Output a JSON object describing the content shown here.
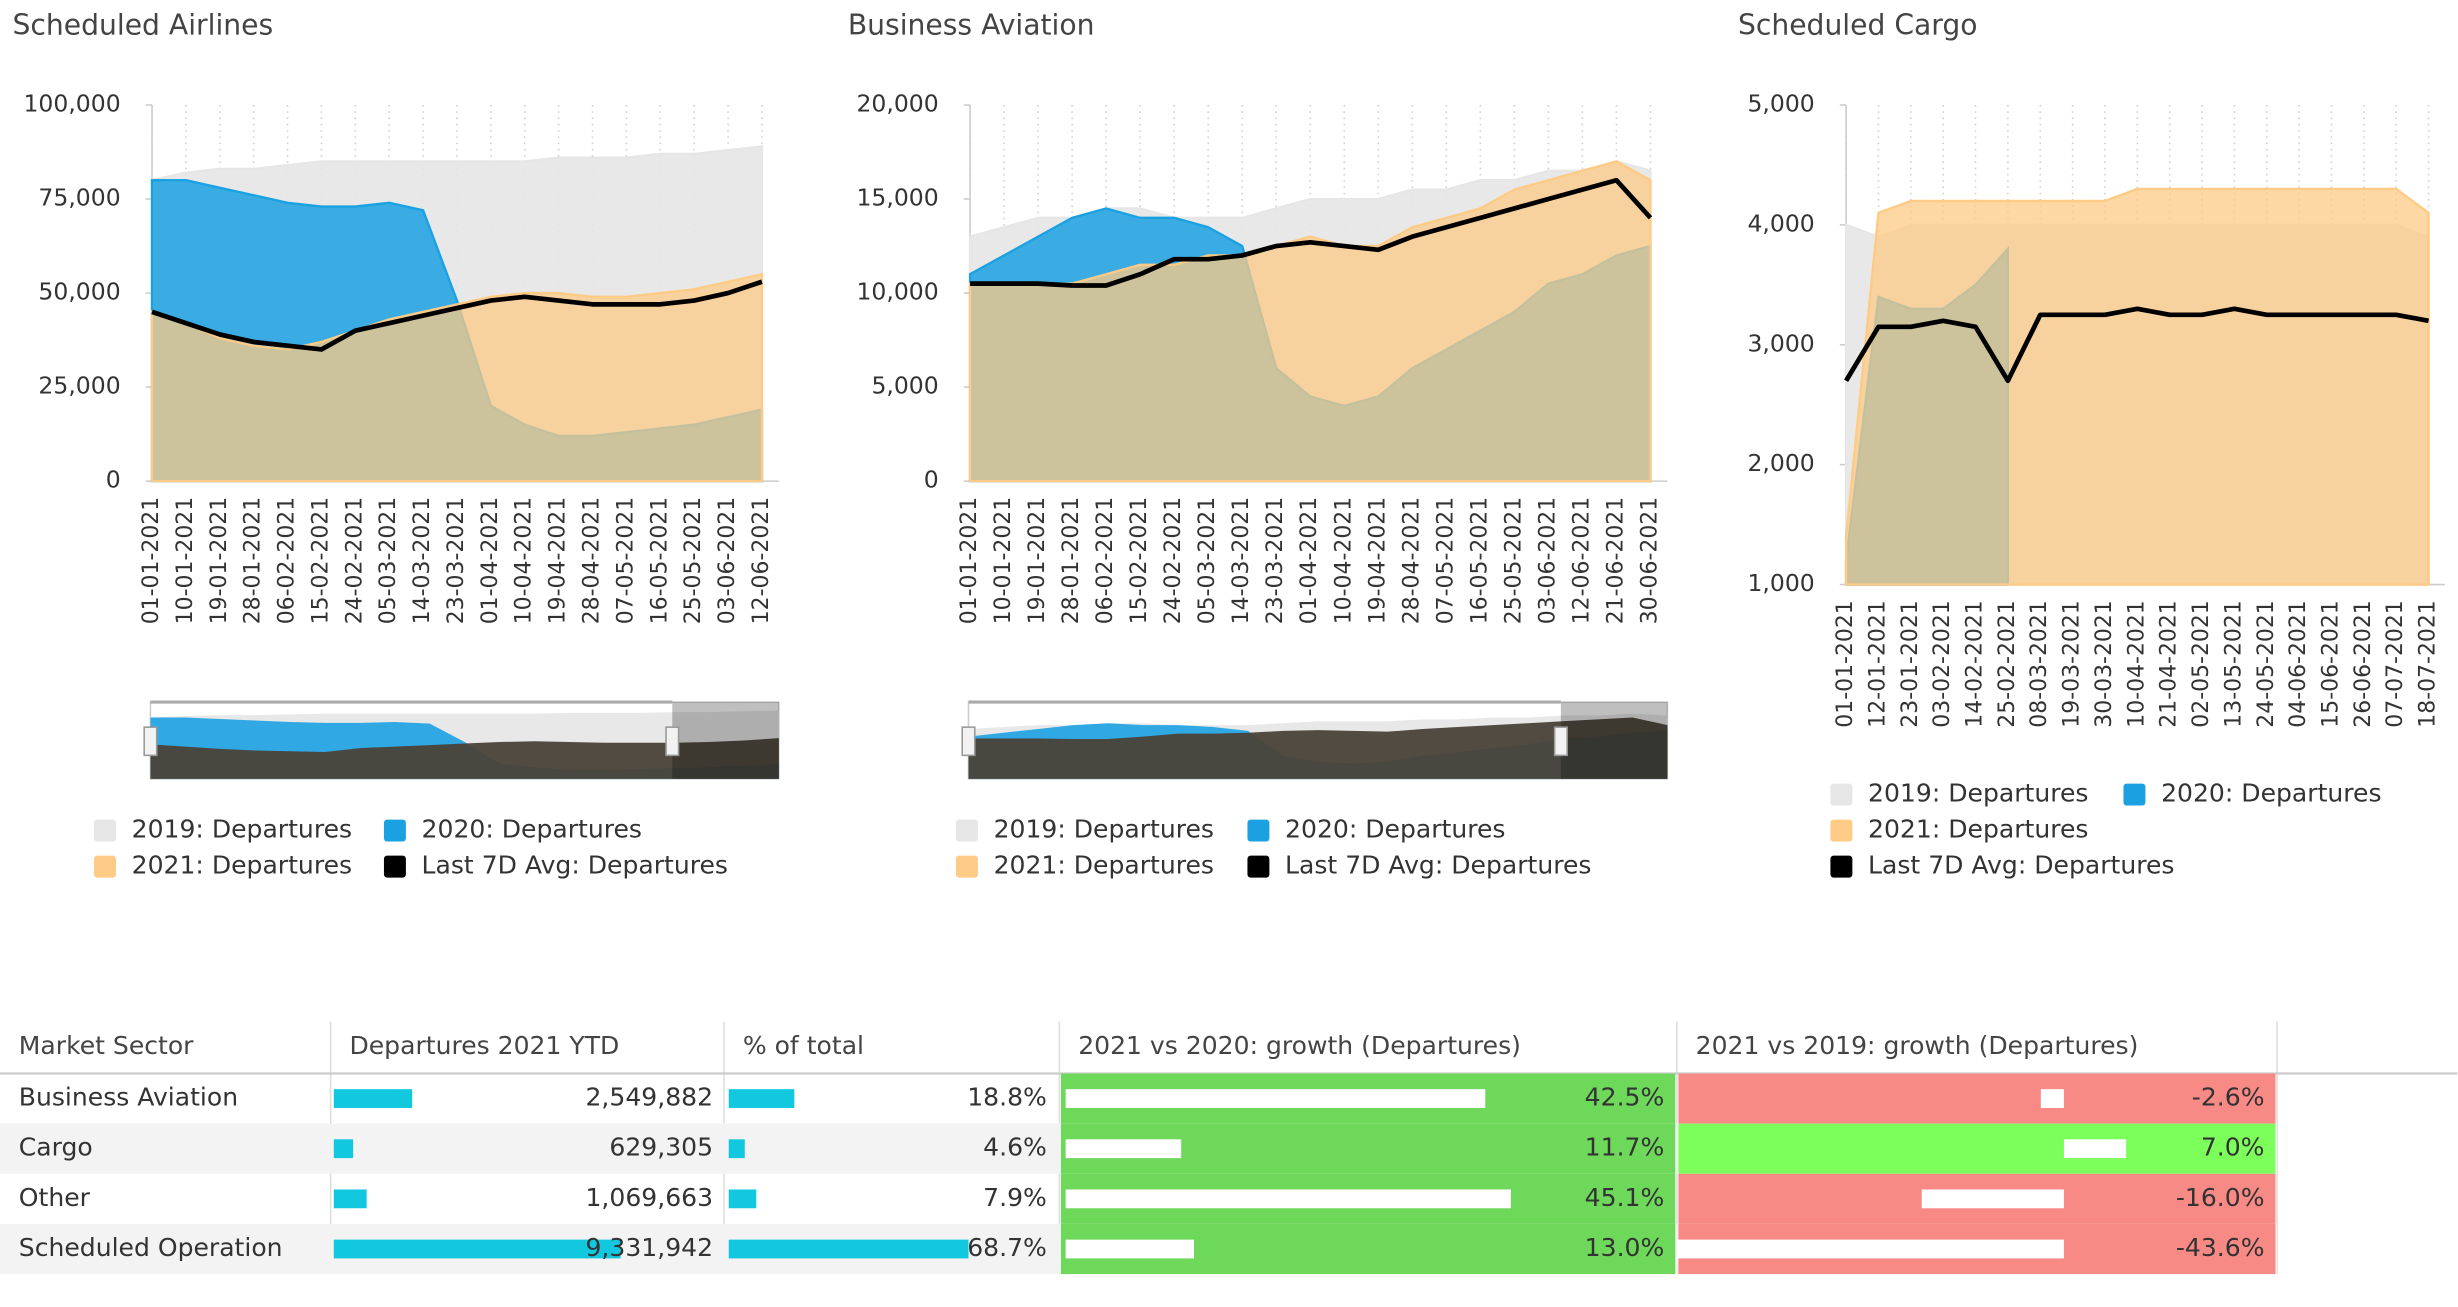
{
  "chart_data": [
    {
      "type": "area",
      "title": "Scheduled Airlines",
      "categories": [
        "01-01-2021",
        "10-01-2021",
        "19-01-2021",
        "28-01-2021",
        "06-02-2021",
        "15-02-2021",
        "24-02-2021",
        "05-03-2021",
        "14-03-2021",
        "23-03-2021",
        "01-04-2021",
        "10-04-2021",
        "19-04-2021",
        "28-04-2021",
        "07-05-2021",
        "16-05-2021",
        "25-05-2021",
        "03-06-2021",
        "12-06-2021"
      ],
      "series": [
        {
          "name": "2019: Departures",
          "color": "#e6e6e6",
          "values": [
            80000,
            82000,
            83000,
            83000,
            84000,
            85000,
            85000,
            85000,
            85000,
            85000,
            85000,
            85000,
            86000,
            86000,
            86000,
            87000,
            87000,
            88000,
            89000
          ]
        },
        {
          "name": "2020: Departures",
          "color": "#1ba1e2",
          "values": [
            80000,
            80000,
            78000,
            76000,
            74000,
            73000,
            73000,
            74000,
            72000,
            48000,
            20000,
            15000,
            12000,
            12000,
            13000,
            14000,
            15000,
            17000,
            19000
          ]
        },
        {
          "name": "2021: Departures",
          "color": "#fdcb85",
          "values": [
            45000,
            42000,
            38000,
            36000,
            35000,
            37000,
            40000,
            43000,
            45000,
            47000,
            49000,
            50000,
            50000,
            49000,
            49000,
            50000,
            51000,
            53000,
            55000
          ]
        },
        {
          "name": "Last 7D Avg: Departures",
          "color": "#000000",
          "values": [
            45000,
            42000,
            39000,
            37000,
            36000,
            35000,
            40000,
            42000,
            44000,
            46000,
            48000,
            49000,
            48000,
            47000,
            47000,
            47000,
            48000,
            50000,
            53000
          ]
        }
      ],
      "ylim": [
        0,
        100000
      ],
      "yticks": [
        0,
        {
          "value": 25000,
          "label": "25,000"
        },
        {
          "value": 50000,
          "label": "50,000"
        },
        {
          "value": 75000,
          "label": "75,000"
        },
        {
          "value": 100000,
          "label": "100,000"
        }
      ],
      "grid": true
    },
    {
      "type": "area",
      "title": "Business Aviation",
      "categories": [
        "01-01-2021",
        "10-01-2021",
        "19-01-2021",
        "28-01-2021",
        "06-02-2021",
        "15-02-2021",
        "24-02-2021",
        "05-03-2021",
        "14-03-2021",
        "23-03-2021",
        "01-04-2021",
        "10-04-2021",
        "19-04-2021",
        "28-04-2021",
        "07-05-2021",
        "16-05-2021",
        "25-05-2021",
        "03-06-2021",
        "12-06-2021",
        "21-06-2021",
        "30-06-2021"
      ],
      "series": [
        {
          "name": "2019: Departures",
          "color": "#e6e6e6",
          "values": [
            13000,
            13500,
            14000,
            14000,
            14500,
            14500,
            14000,
            14000,
            14000,
            14500,
            15000,
            15000,
            15000,
            15500,
            15500,
            16000,
            16000,
            16500,
            16500,
            17000,
            16500
          ]
        },
        {
          "name": "2020: Departures",
          "color": "#1ba1e2",
          "values": [
            11000,
            12000,
            13000,
            14000,
            14500,
            14000,
            14000,
            13500,
            12500,
            6000,
            4500,
            4000,
            4500,
            6000,
            7000,
            8000,
            9000,
            10500,
            11000,
            12000,
            12500
          ]
        },
        {
          "name": "2021: Departures",
          "color": "#fdcb85",
          "values": [
            10500,
            10500,
            10500,
            10500,
            11000,
            11500,
            11500,
            12000,
            12000,
            12500,
            13000,
            12500,
            12500,
            13500,
            14000,
            14500,
            15500,
            16000,
            16500,
            17000,
            16000
          ]
        },
        {
          "name": "Last 7D Avg: Departures",
          "color": "#000000",
          "values": [
            10500,
            10500,
            10500,
            10400,
            10400,
            11000,
            11800,
            11800,
            12000,
            12500,
            12700,
            12500,
            12300,
            13000,
            13500,
            14000,
            14500,
            15000,
            15500,
            16000,
            14000
          ]
        }
      ],
      "ylim": [
        0,
        20000
      ],
      "yticks": [
        0,
        {
          "value": 5000,
          "label": "5,000"
        },
        {
          "value": 10000,
          "label": "10,000"
        },
        {
          "value": 15000,
          "label": "15,000"
        },
        {
          "value": 20000,
          "label": "20,000"
        }
      ],
      "grid": true
    },
    {
      "type": "area",
      "title": "Scheduled Cargo",
      "categories": [
        "01-01-2021",
        "12-01-2021",
        "23-01-2021",
        "03-02-2021",
        "14-02-2021",
        "25-02-2021",
        "08-03-2021",
        "19-03-2021",
        "30-03-2021",
        "10-04-2021",
        "21-04-2021",
        "02-05-2021",
        "13-05-2021",
        "24-05-2021",
        "04-06-2021",
        "15-06-2021",
        "26-06-2021",
        "07-07-2021",
        "18-07-2021"
      ],
      "series": [
        {
          "name": "2019: Departures",
          "color": "#e6e6e6",
          "values": [
            4000,
            3900,
            4000,
            4000,
            4000,
            4000,
            4000,
            4000,
            4000,
            4000,
            4000,
            4000,
            4000,
            4000,
            4000,
            4000,
            4000,
            4000,
            3900
          ]
        },
        {
          "name": "2020: Departures",
          "color": "#1ba1e2",
          "values": [
            1200,
            3400,
            3300,
            3300,
            3500,
            3800,
            null,
            null,
            null,
            null,
            null,
            null,
            null,
            null,
            null,
            null,
            null,
            null,
            null
          ]
        },
        {
          "name": "2021: Departures",
          "color": "#fdcb85",
          "values": [
            1400,
            4100,
            4200,
            4200,
            4200,
            4200,
            4200,
            4200,
            4200,
            4300,
            4300,
            4300,
            4300,
            4300,
            4300,
            4300,
            4300,
            4300,
            4100
          ]
        },
        {
          "name": "Last 7D Avg: Departures",
          "color": "#000000",
          "values": [
            2700,
            3150,
            3150,
            3200,
            3150,
            2700,
            3250,
            3250,
            3250,
            3300,
            3250,
            3250,
            3300,
            3250,
            3250,
            3250,
            3250,
            3250,
            3200
          ]
        }
      ],
      "ylim": [
        1000,
        5000
      ],
      "yticks": [
        {
          "value": 1000,
          "label": "1,000"
        },
        {
          "value": 2000,
          "label": "2,000"
        },
        {
          "value": 3000,
          "label": "3,000"
        },
        {
          "value": 4000,
          "label": "4,000"
        },
        {
          "value": 5000,
          "label": "5,000"
        }
      ],
      "grid": true
    }
  ],
  "table": {
    "columns": [
      "Market Sector",
      "Departures 2021 YTD",
      "% of total",
      "2021 vs 2020: growth (Departures)",
      "2021 vs 2019: growth (Departures)"
    ],
    "rows": [
      {
        "sector": "Business Aviation",
        "departures": {
          "value": 2549882,
          "label": "2,549,882"
        },
        "share": {
          "value": 18.8,
          "label": "18.8%"
        },
        "vs2020": {
          "value": 42.5,
          "label": "42.5%"
        },
        "vs2019": {
          "value": -2.6,
          "label": "-2.6%"
        }
      },
      {
        "sector": "Cargo",
        "departures": {
          "value": 629305,
          "label": "629,305"
        },
        "share": {
          "value": 4.6,
          "label": "4.6%"
        },
        "vs2020": {
          "value": 11.7,
          "label": "11.7%"
        },
        "vs2019": {
          "value": 7.0,
          "label": "7.0%"
        }
      },
      {
        "sector": "Other",
        "departures": {
          "value": 1069663,
          "label": "1,069,663"
        },
        "share": {
          "value": 7.9,
          "label": "7.9%"
        },
        "vs2020": {
          "value": 45.1,
          "label": "45.1%"
        },
        "vs2019": {
          "value": -16.0,
          "label": "-16.0%"
        }
      },
      {
        "sector": "Scheduled Operation",
        "departures": {
          "value": 9331942,
          "label": "9,331,942"
        },
        "share": {
          "value": 68.7,
          "label": "68.7%"
        },
        "vs2020": {
          "value": 13.0,
          "label": "13.0%"
        },
        "vs2019": {
          "value": -43.6,
          "label": "-43.6%"
        }
      }
    ]
  }
}
